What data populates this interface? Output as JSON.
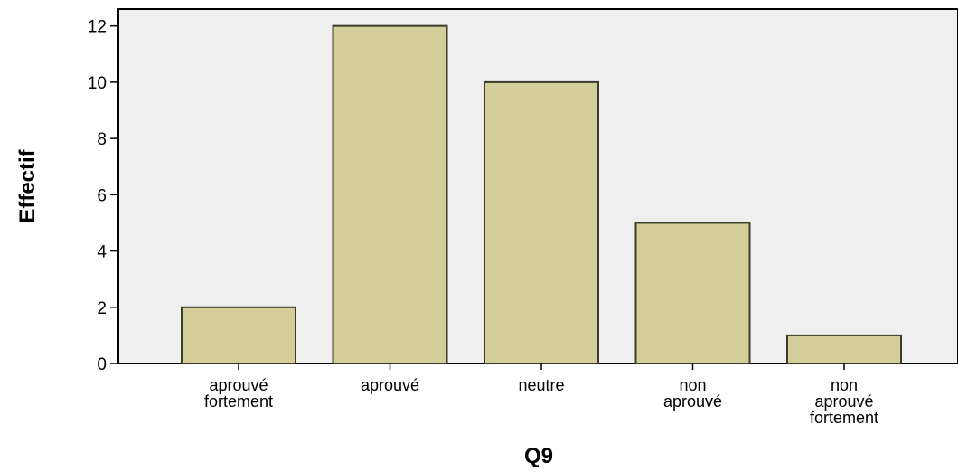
{
  "chart_data": {
    "type": "bar",
    "title": "",
    "xlabel": "Q9",
    "ylabel": "Effectif",
    "categories": [
      "aprouvé fortement",
      "aprouvé",
      "neutre",
      "non aprouvé",
      "non aprouvé fortement"
    ],
    "category_label_lines": [
      [
        "aprouvé",
        "fortement"
      ],
      [
        "aprouvé"
      ],
      [
        "neutre"
      ],
      [
        "non",
        "aprouvé"
      ],
      [
        "non",
        "aprouvé",
        "fortement"
      ]
    ],
    "values": [
      2,
      12,
      10,
      5,
      1
    ],
    "ylim": [
      0,
      12.6
    ],
    "yticks": [
      0,
      2,
      4,
      6,
      8,
      10,
      12
    ],
    "grid": false,
    "legend": "none",
    "colors": {
      "plot_background": "#efefef",
      "bar_fill": "#d3ce9a",
      "bar_stroke": "#3c3c2c",
      "axis": "#000000"
    }
  }
}
